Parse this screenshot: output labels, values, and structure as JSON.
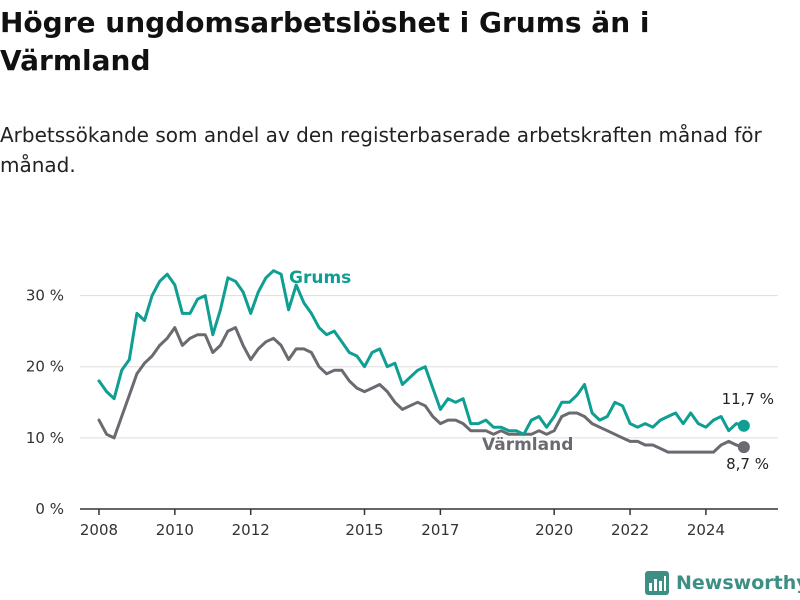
{
  "header": {
    "title": "Högre ungdomsarbetslöshet i Grums än i Värmland",
    "subtitle": "Arbetssökande som andel av den registerbaserade arbetskraften månad för månad."
  },
  "footer": {
    "brand": "Newsworthy"
  },
  "colors": {
    "grums": "#0f9e92",
    "varmland": "#6b6a70",
    "grid": "#dddddd",
    "axis": "#333333"
  },
  "chart_data": {
    "type": "line",
    "ylim": [
      0,
      35
    ],
    "xlim": [
      2007.5,
      2025.9
    ],
    "y_ticks": [
      {
        "value": 0,
        "label": "0 %"
      },
      {
        "value": 10,
        "label": "10 %"
      },
      {
        "value": 20,
        "label": "20 %"
      },
      {
        "value": 30,
        "label": "30 %"
      }
    ],
    "x_ticks": [
      {
        "value": 2008,
        "label": "2008"
      },
      {
        "value": 2010,
        "label": "2010"
      },
      {
        "value": 2012,
        "label": "2012"
      },
      {
        "value": 2015,
        "label": "2015"
      },
      {
        "value": 2017,
        "label": "2017"
      },
      {
        "value": 2020,
        "label": "2020"
      },
      {
        "value": 2022,
        "label": "2022"
      },
      {
        "value": 2024,
        "label": "2024"
      }
    ],
    "grid": true,
    "series": [
      {
        "key": "grums",
        "name": "Grums",
        "end_label": "11,7 %",
        "x": [
          2008.0,
          2008.2,
          2008.4,
          2008.6,
          2008.8,
          2009.0,
          2009.2,
          2009.4,
          2009.6,
          2009.8,
          2010.0,
          2010.2,
          2010.4,
          2010.6,
          2010.8,
          2011.0,
          2011.2,
          2011.4,
          2011.6,
          2011.8,
          2012.0,
          2012.2,
          2012.4,
          2012.6,
          2012.8,
          2013.0,
          2013.2,
          2013.4,
          2013.6,
          2013.8,
          2014.0,
          2014.2,
          2014.4,
          2014.6,
          2014.8,
          2015.0,
          2015.2,
          2015.4,
          2015.6,
          2015.8,
          2016.0,
          2016.2,
          2016.4,
          2016.6,
          2016.8,
          2017.0,
          2017.2,
          2017.4,
          2017.6,
          2017.8,
          2018.0,
          2018.2,
          2018.4,
          2018.6,
          2018.8,
          2019.0,
          2019.2,
          2019.4,
          2019.6,
          2019.8,
          2020.0,
          2020.2,
          2020.4,
          2020.6,
          2020.8,
          2021.0,
          2021.2,
          2021.4,
          2021.6,
          2021.8,
          2022.0,
          2022.2,
          2022.4,
          2022.6,
          2022.8,
          2023.0,
          2023.2,
          2023.4,
          2023.6,
          2023.8,
          2024.0,
          2024.2,
          2024.4,
          2024.6,
          2024.8,
          2025.0
        ],
        "values": [
          18.0,
          16.5,
          15.5,
          19.5,
          21.0,
          27.5,
          26.5,
          30.0,
          32.0,
          33.0,
          31.5,
          27.5,
          27.5,
          29.5,
          30.0,
          24.5,
          28.0,
          32.5,
          32.0,
          30.5,
          27.5,
          30.5,
          32.5,
          33.5,
          33.0,
          28.0,
          31.5,
          29.0,
          27.5,
          25.5,
          24.5,
          25.0,
          23.5,
          22.0,
          21.5,
          20.0,
          22.0,
          22.5,
          20.0,
          20.5,
          17.5,
          18.5,
          19.5,
          20.0,
          17.0,
          14.0,
          15.5,
          15.0,
          15.5,
          12.0,
          12.0,
          12.5,
          11.5,
          11.5,
          11.0,
          11.0,
          10.5,
          12.5,
          13.0,
          11.5,
          13.0,
          15.0,
          15.0,
          16.0,
          17.5,
          13.5,
          12.5,
          13.0,
          15.0,
          14.5,
          12.0,
          11.5,
          12.0,
          11.5,
          12.5,
          13.0,
          13.5,
          12.0,
          13.5,
          12.0,
          11.5,
          12.5,
          13.0,
          11.0,
          12.0,
          11.7
        ]
      },
      {
        "key": "varmland",
        "name": "Värmland",
        "end_label": "8,7 %",
        "x": [
          2008.0,
          2008.2,
          2008.4,
          2008.6,
          2008.8,
          2009.0,
          2009.2,
          2009.4,
          2009.6,
          2009.8,
          2010.0,
          2010.2,
          2010.4,
          2010.6,
          2010.8,
          2011.0,
          2011.2,
          2011.4,
          2011.6,
          2011.8,
          2012.0,
          2012.2,
          2012.4,
          2012.6,
          2012.8,
          2013.0,
          2013.2,
          2013.4,
          2013.6,
          2013.8,
          2014.0,
          2014.2,
          2014.4,
          2014.6,
          2014.8,
          2015.0,
          2015.2,
          2015.4,
          2015.6,
          2015.8,
          2016.0,
          2016.2,
          2016.4,
          2016.6,
          2016.8,
          2017.0,
          2017.2,
          2017.4,
          2017.6,
          2017.8,
          2018.0,
          2018.2,
          2018.4,
          2018.6,
          2018.8,
          2019.0,
          2019.2,
          2019.4,
          2019.6,
          2019.8,
          2020.0,
          2020.2,
          2020.4,
          2020.6,
          2020.8,
          2021.0,
          2021.2,
          2021.4,
          2021.6,
          2021.8,
          2022.0,
          2022.2,
          2022.4,
          2022.6,
          2022.8,
          2023.0,
          2023.2,
          2023.4,
          2023.6,
          2023.8,
          2024.0,
          2024.2,
          2024.4,
          2024.6,
          2024.8,
          2025.0
        ],
        "values": [
          12.5,
          10.5,
          10.0,
          13.0,
          16.0,
          19.0,
          20.5,
          21.5,
          23.0,
          24.0,
          25.5,
          23.0,
          24.0,
          24.5,
          24.5,
          22.0,
          23.0,
          25.0,
          25.5,
          23.0,
          21.0,
          22.5,
          23.5,
          24.0,
          23.0,
          21.0,
          22.5,
          22.5,
          22.0,
          20.0,
          19.0,
          19.5,
          19.5,
          18.0,
          17.0,
          16.5,
          17.0,
          17.5,
          16.5,
          15.0,
          14.0,
          14.5,
          15.0,
          14.5,
          13.0,
          12.0,
          12.5,
          12.5,
          12.0,
          11.0,
          11.0,
          11.0,
          10.5,
          11.0,
          10.5,
          10.5,
          10.5,
          10.5,
          11.0,
          10.5,
          11.0,
          13.0,
          13.5,
          13.5,
          13.0,
          12.0,
          11.5,
          11.0,
          10.5,
          10.0,
          9.5,
          9.5,
          9.0,
          9.0,
          8.5,
          8.0,
          8.0,
          8.0,
          8.0,
          8.0,
          8.0,
          8.0,
          9.0,
          9.5,
          9.0,
          8.7
        ]
      }
    ]
  }
}
